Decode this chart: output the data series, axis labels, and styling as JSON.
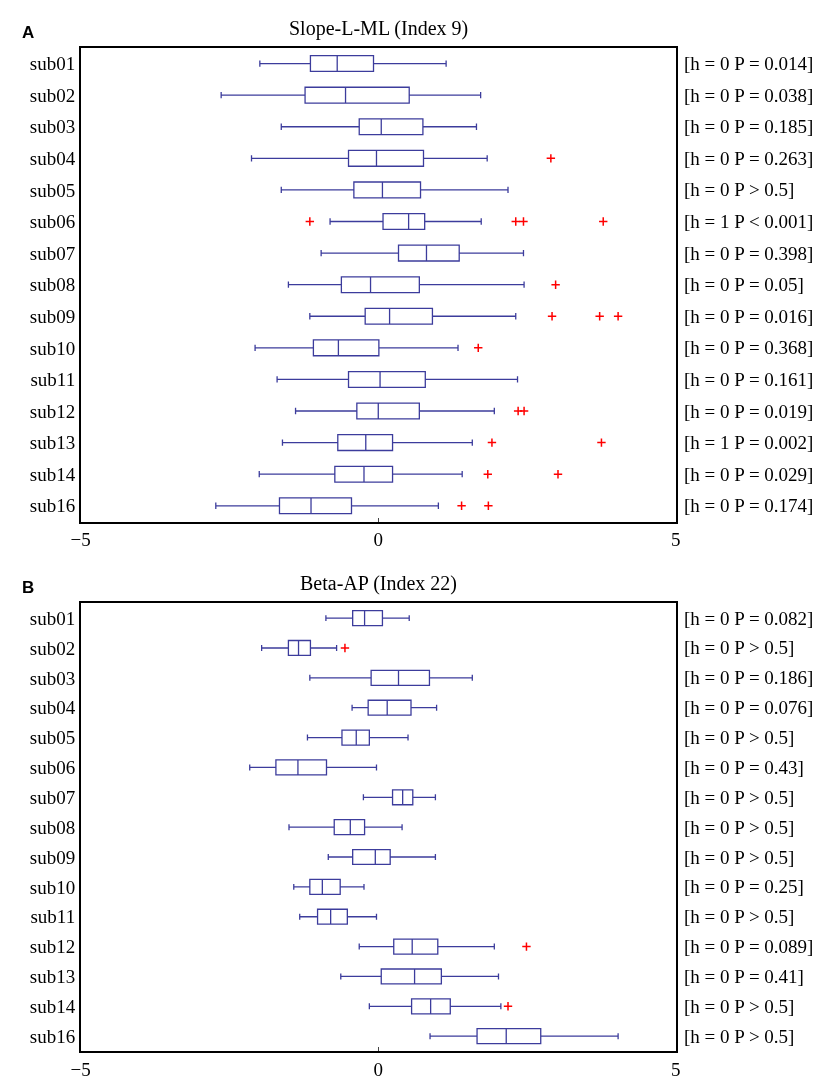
{
  "chart_data": [
    {
      "type": "box",
      "title": "Slope-L-ML (Index 9)",
      "annotations": [
        "A"
      ],
      "orientation": "horizontal",
      "categories": [
        "sub01",
        "sub02",
        "sub03",
        "sub04",
        "sub05",
        "sub06",
        "sub07",
        "sub08",
        "sub09",
        "sub10",
        "sub11",
        "sub12",
        "sub13",
        "sub14",
        "sub16"
      ],
      "y2_categories": [
        "[h = 0 P = 0.014]",
        "[h = 0 P = 0.038]",
        "[h = 0 P = 0.185]",
        "[h = 0 P = 0.263]",
        "[h = 0 P > 0.5]",
        "[h = 1 P < 0.001]",
        "[h = 0 P = 0.398]",
        "[h = 0 P = 0.05]",
        "[h = 0 P = 0.016]",
        "[h = 0 P = 0.368]",
        "[h = 0 P = 0.161]",
        "[h = 0 P = 0.019]",
        "[h = 1 P = 0.002]",
        "[h = 0 P = 0.029]",
        "[h = 0 P = 0.174]"
      ],
      "xlim": [
        -5,
        5
      ],
      "xticks": [
        {
          "value": -5,
          "label": "−5"
        },
        0,
        5
      ],
      "series": [
        {
          "color": "#3c3c9c",
          "boxes": [
            {
              "low": -1.99,
              "q1": -1.14,
              "median": -0.69,
              "q3": -0.08,
              "high": 1.14
            },
            {
              "low": -2.64,
              "q1": -1.23,
              "median": -0.55,
              "q3": 0.52,
              "high": 1.72
            },
            {
              "low": -1.63,
              "q1": -0.32,
              "median": 0.05,
              "q3": 0.75,
              "high": 1.65
            },
            {
              "low": -2.13,
              "q1": -0.5,
              "median": -0.03,
              "q3": 0.76,
              "high": 1.83,
              "outliers": [
                2.9
              ]
            },
            {
              "low": -1.63,
              "q1": -0.41,
              "median": 0.07,
              "q3": 0.71,
              "high": 2.18
            },
            {
              "low": -0.81,
              "q1": 0.08,
              "median": 0.51,
              "q3": 0.78,
              "high": 1.73,
              "outliers": [
                -1.15,
                2.31,
                2.44,
                3.78
              ]
            },
            {
              "low": -0.96,
              "q1": 0.34,
              "median": 0.81,
              "q3": 1.36,
              "high": 2.44
            },
            {
              "low": -1.51,
              "q1": -0.62,
              "median": -0.13,
              "q3": 0.69,
              "high": 2.45,
              "outliers": [
                2.98
              ]
            },
            {
              "low": -1.15,
              "q1": -0.22,
              "median": 0.19,
              "q3": 0.91,
              "high": 2.31,
              "outliers": [
                2.92,
                3.72,
                4.03
              ]
            },
            {
              "low": -2.07,
              "q1": -1.09,
              "median": -0.67,
              "q3": 0.01,
              "high": 1.34,
              "outliers": [
                1.68
              ]
            },
            {
              "low": -1.7,
              "q1": -0.5,
              "median": 0.03,
              "q3": 0.79,
              "high": 2.34
            },
            {
              "low": -1.39,
              "q1": -0.36,
              "median": 0.0,
              "q3": 0.69,
              "high": 1.95,
              "outliers": [
                2.35,
                2.45
              ]
            },
            {
              "low": -1.61,
              "q1": -0.68,
              "median": -0.21,
              "q3": 0.24,
              "high": 1.58,
              "outliers": [
                1.91,
                3.75
              ]
            },
            {
              "low": -2.0,
              "q1": -0.73,
              "median": -0.24,
              "q3": 0.24,
              "high": 1.41,
              "outliers": [
                1.84,
                3.02
              ]
            },
            {
              "low": -2.73,
              "q1": -1.66,
              "median": -1.13,
              "q3": -0.45,
              "high": 1.01,
              "outliers": [
                1.4,
                1.85
              ]
            }
          ]
        }
      ]
    },
    {
      "type": "box",
      "title": "Beta-AP (Index 22)",
      "annotations": [
        "B"
      ],
      "orientation": "horizontal",
      "categories": [
        "sub01",
        "sub02",
        "sub03",
        "sub04",
        "sub05",
        "sub06",
        "sub07",
        "sub08",
        "sub09",
        "sub10",
        "sub11",
        "sub12",
        "sub13",
        "sub14",
        "sub16"
      ],
      "y2_categories": [
        "[h = 0 P = 0.082]",
        "[h = 0 P > 0.5]",
        "[h = 0 P = 0.186]",
        "[h = 0 P = 0.076]",
        "[h = 0 P > 0.5]",
        "[h = 0 P = 0.43]",
        "[h = 0 P > 0.5]",
        "[h = 0 P > 0.5]",
        "[h = 0 P > 0.5]",
        "[h = 0 P = 0.25]",
        "[h = 0 P > 0.5]",
        "[h = 0 P = 0.089]",
        "[h = 0 P = 0.41]",
        "[h = 0 P > 0.5]",
        "[h = 0 P > 0.5]"
      ],
      "xlim": [
        -5,
        5
      ],
      "xticks": [
        {
          "value": -5,
          "label": "−5"
        },
        0,
        5
      ],
      "series": [
        {
          "color": "#3c3c9c",
          "boxes": [
            {
              "low": -0.88,
              "q1": -0.43,
              "median": -0.23,
              "q3": 0.07,
              "high": 0.52
            },
            {
              "low": -1.96,
              "q1": -1.51,
              "median": -1.34,
              "q3": -1.14,
              "high": -0.7,
              "outliers": [
                -0.56
              ]
            },
            {
              "low": -1.15,
              "q1": -0.12,
              "median": 0.34,
              "q3": 0.86,
              "high": 1.58
            },
            {
              "low": -0.44,
              "q1": -0.17,
              "median": 0.15,
              "q3": 0.55,
              "high": 0.98
            },
            {
              "low": -1.19,
              "q1": -0.61,
              "median": -0.37,
              "q3": -0.15,
              "high": 0.5
            },
            {
              "low": -2.16,
              "q1": -1.72,
              "median": -1.35,
              "q3": -0.87,
              "high": -0.03
            },
            {
              "low": -0.25,
              "q1": 0.24,
              "median": 0.41,
              "q3": 0.58,
              "high": 0.96
            },
            {
              "low": -1.5,
              "q1": -0.74,
              "median": -0.47,
              "q3": -0.23,
              "high": 0.4
            },
            {
              "low": -0.84,
              "q1": -0.43,
              "median": -0.05,
              "q3": 0.2,
              "high": 0.96
            },
            {
              "low": -1.42,
              "q1": -1.15,
              "median": -0.94,
              "q3": -0.64,
              "high": -0.24
            },
            {
              "low": -1.32,
              "q1": -1.02,
              "median": -0.8,
              "q3": -0.52,
              "high": -0.03
            },
            {
              "low": -0.32,
              "q1": 0.26,
              "median": 0.57,
              "q3": 1.0,
              "high": 1.95,
              "outliers": [
                2.49
              ]
            },
            {
              "low": -0.63,
              "q1": 0.05,
              "median": 0.61,
              "q3": 1.06,
              "high": 2.02
            },
            {
              "low": -0.15,
              "q1": 0.56,
              "median": 0.88,
              "q3": 1.21,
              "high": 2.06,
              "outliers": [
                2.18
              ]
            },
            {
              "low": 0.87,
              "q1": 1.66,
              "median": 2.15,
              "q3": 2.73,
              "high": 4.03
            }
          ]
        }
      ]
    }
  ]
}
